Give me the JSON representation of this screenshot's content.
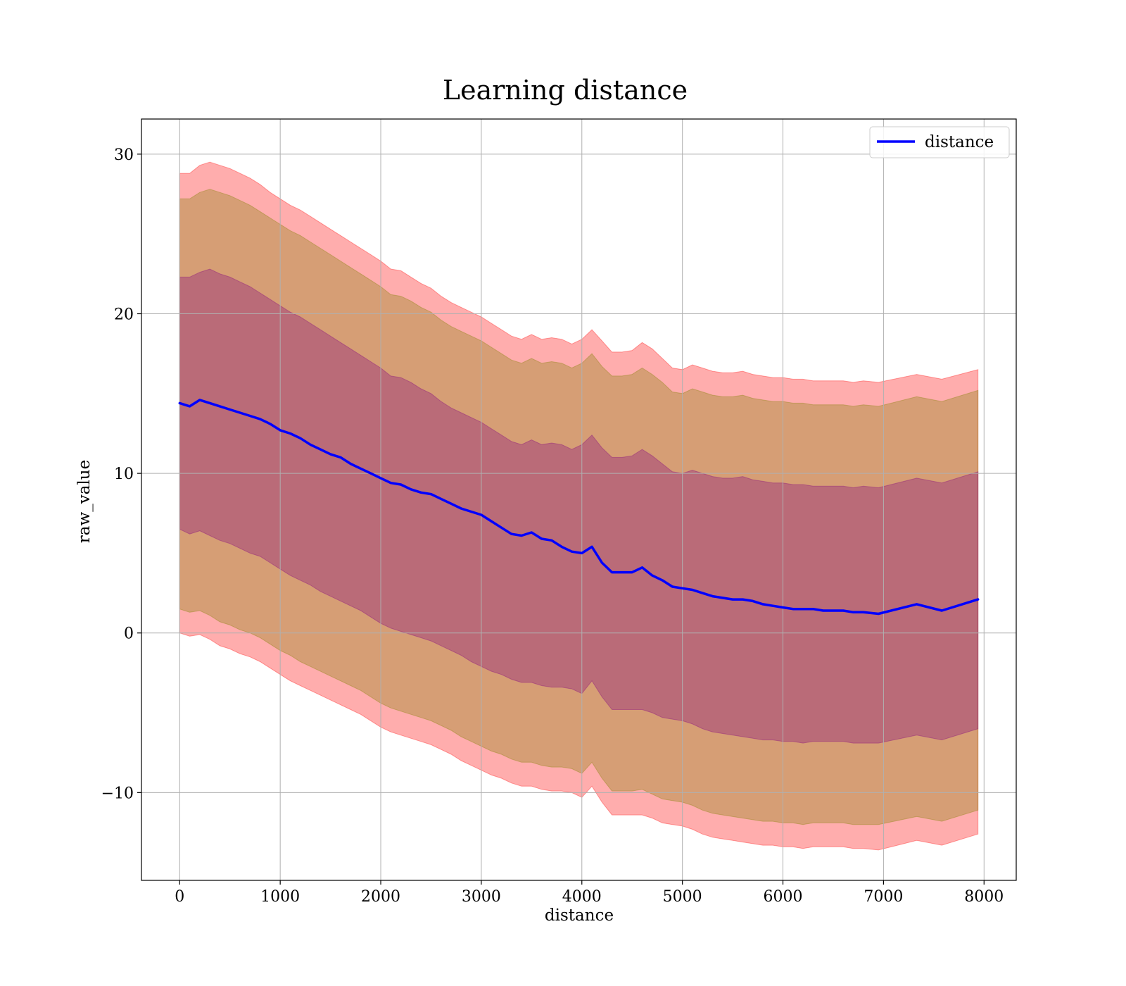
{
  "chart_data": {
    "type": "line",
    "title": "Learning distance",
    "xlabel": "distance",
    "ylabel": "raw_value",
    "xlim": [
      -380,
      8320
    ],
    "ylim": [
      -15.5,
      32.2
    ],
    "grid": true,
    "legend_placement": "top-right",
    "x_ticks": [
      0,
      1000,
      2000,
      3000,
      4000,
      5000,
      6000,
      7000,
      8000
    ],
    "x_tick_labels": [
      "0",
      "1000",
      "2000",
      "3000",
      "4000",
      "5000",
      "6000",
      "7000",
      "8000"
    ],
    "y_ticks": [
      -10,
      0,
      10,
      20,
      30
    ],
    "y_tick_labels": [
      "−10",
      "0",
      "10",
      "20",
      "30"
    ],
    "colors": {
      "line": "#0000ff",
      "outer_band": "#ff0000",
      "middle_band": "#808000",
      "inner_band": "#800080",
      "grid": "#b0b0b0"
    },
    "series": [
      {
        "name": "distance",
        "x": [
          0,
          100,
          200,
          300,
          400,
          500,
          600,
          700,
          800,
          900,
          1000,
          1100,
          1200,
          1300,
          1400,
          1500,
          1600,
          1700,
          1800,
          1900,
          2000,
          2100,
          2200,
          2300,
          2400,
          2500,
          2600,
          2700,
          2800,
          2900,
          3000,
          3100,
          3200,
          3300,
          3400,
          3500,
          3600,
          3700,
          3800,
          3900,
          4000,
          4100,
          4200,
          4300,
          4400,
          4500,
          4600,
          4700,
          4800,
          4900,
          5000,
          5100,
          5200,
          5300,
          5400,
          5500,
          5600,
          5700,
          5800,
          5900,
          6000,
          6100,
          6200,
          6300,
          6400,
          6500,
          6600,
          6700,
          6800,
          6950,
          7330,
          7580,
          7940
        ],
        "y": [
          14.4,
          14.2,
          14.6,
          14.4,
          14.2,
          14.0,
          13.8,
          13.6,
          13.4,
          13.1,
          12.7,
          12.5,
          12.2,
          11.8,
          11.5,
          11.2,
          11.0,
          10.6,
          10.3,
          10.0,
          9.7,
          9.4,
          9.3,
          9.0,
          8.8,
          8.7,
          8.4,
          8.1,
          7.8,
          7.6,
          7.4,
          7.0,
          6.6,
          6.2,
          6.1,
          6.3,
          5.9,
          5.8,
          5.4,
          5.1,
          5.0,
          5.4,
          4.4,
          3.8,
          3.8,
          3.8,
          4.1,
          3.6,
          3.3,
          2.9,
          2.8,
          2.7,
          2.5,
          2.3,
          2.2,
          2.1,
          2.1,
          2.0,
          1.8,
          1.7,
          1.6,
          1.5,
          1.5,
          1.5,
          1.4,
          1.4,
          1.4,
          1.3,
          1.3,
          1.2,
          1.8,
          1.4,
          2.1
        ]
      }
    ],
    "bands": [
      {
        "level": "outer",
        "x": [
          0,
          100,
          200,
          300,
          400,
          500,
          600,
          700,
          800,
          900,
          1000,
          1100,
          1200,
          1300,
          1400,
          1500,
          1600,
          1700,
          1800,
          1900,
          2000,
          2100,
          2200,
          2300,
          2400,
          2500,
          2600,
          2700,
          2800,
          2900,
          3000,
          3100,
          3200,
          3300,
          3400,
          3500,
          3600,
          3700,
          3800,
          3900,
          4000,
          4100,
          4200,
          4300,
          4400,
          4500,
          4600,
          4700,
          4800,
          4900,
          5000,
          5100,
          5200,
          5300,
          5400,
          5500,
          5600,
          5700,
          5800,
          5900,
          6000,
          6100,
          6200,
          6300,
          6400,
          6500,
          6600,
          6700,
          6800,
          6950,
          7330,
          7580,
          7940
        ],
        "upper": [
          28.8,
          28.8,
          29.3,
          29.5,
          29.3,
          29.1,
          28.8,
          28.5,
          28.1,
          27.6,
          27.2,
          26.8,
          26.5,
          26.1,
          25.7,
          25.3,
          24.9,
          24.5,
          24.1,
          23.7,
          23.3,
          22.8,
          22.7,
          22.3,
          21.9,
          21.6,
          21.1,
          20.7,
          20.4,
          20.1,
          19.8,
          19.4,
          19.0,
          18.6,
          18.4,
          18.7,
          18.4,
          18.5,
          18.4,
          18.1,
          18.4,
          19.0,
          18.3,
          17.6,
          17.6,
          17.7,
          18.2,
          17.8,
          17.2,
          16.6,
          16.5,
          16.8,
          16.6,
          16.4,
          16.3,
          16.3,
          16.4,
          16.2,
          16.1,
          16.0,
          16.0,
          15.9,
          15.9,
          15.8,
          15.8,
          15.8,
          15.8,
          15.7,
          15.8,
          15.7,
          16.2,
          15.9,
          16.5
        ],
        "lower": [
          0.0,
          -0.2,
          -0.1,
          -0.4,
          -0.8,
          -1.0,
          -1.3,
          -1.5,
          -1.8,
          -2.2,
          -2.6,
          -3.0,
          -3.3,
          -3.6,
          -3.9,
          -4.2,
          -4.5,
          -4.8,
          -5.1,
          -5.5,
          -5.9,
          -6.2,
          -6.4,
          -6.6,
          -6.8,
          -7.0,
          -7.3,
          -7.6,
          -8.0,
          -8.3,
          -8.6,
          -8.9,
          -9.1,
          -9.4,
          -9.6,
          -9.6,
          -9.8,
          -9.9,
          -9.9,
          -10.0,
          -10.3,
          -9.6,
          -10.6,
          -11.4,
          -11.4,
          -11.4,
          -11.4,
          -11.6,
          -11.9,
          -12.0,
          -12.1,
          -12.3,
          -12.6,
          -12.8,
          -12.9,
          -13.0,
          -13.1,
          -13.2,
          -13.3,
          -13.3,
          -13.4,
          -13.4,
          -13.5,
          -13.4,
          -13.4,
          -13.4,
          -13.4,
          -13.5,
          -13.5,
          -13.6,
          -13.0,
          -13.3,
          -12.6
        ]
      },
      {
        "level": "middle",
        "x": [
          0,
          100,
          200,
          300,
          400,
          500,
          600,
          700,
          800,
          900,
          1000,
          1100,
          1200,
          1300,
          1400,
          1500,
          1600,
          1700,
          1800,
          1900,
          2000,
          2100,
          2200,
          2300,
          2400,
          2500,
          2600,
          2700,
          2800,
          2900,
          3000,
          3100,
          3200,
          3300,
          3400,
          3500,
          3600,
          3700,
          3800,
          3900,
          4000,
          4100,
          4200,
          4300,
          4400,
          4500,
          4600,
          4700,
          4800,
          4900,
          5000,
          5100,
          5200,
          5300,
          5400,
          5500,
          5600,
          5700,
          5800,
          5900,
          6000,
          6100,
          6200,
          6300,
          6400,
          6500,
          6600,
          6700,
          6800,
          6950,
          7330,
          7580,
          7940
        ],
        "upper": [
          27.2,
          27.2,
          27.6,
          27.8,
          27.6,
          27.4,
          27.1,
          26.8,
          26.4,
          26.0,
          25.6,
          25.2,
          24.9,
          24.5,
          24.1,
          23.7,
          23.3,
          22.9,
          22.5,
          22.1,
          21.7,
          21.2,
          21.1,
          20.8,
          20.4,
          20.1,
          19.6,
          19.2,
          18.9,
          18.6,
          18.3,
          17.9,
          17.5,
          17.1,
          16.9,
          17.2,
          16.9,
          17.0,
          16.9,
          16.6,
          16.9,
          17.5,
          16.7,
          16.1,
          16.1,
          16.2,
          16.6,
          16.2,
          15.7,
          15.1,
          15.0,
          15.3,
          15.1,
          14.9,
          14.8,
          14.8,
          14.9,
          14.7,
          14.6,
          14.5,
          14.5,
          14.4,
          14.4,
          14.3,
          14.3,
          14.3,
          14.3,
          14.2,
          14.3,
          14.2,
          14.8,
          14.5,
          15.2
        ],
        "lower": [
          1.5,
          1.3,
          1.4,
          1.1,
          0.7,
          0.5,
          0.2,
          -0.0,
          -0.3,
          -0.7,
          -1.1,
          -1.4,
          -1.8,
          -2.1,
          -2.4,
          -2.7,
          -3.0,
          -3.3,
          -3.6,
          -4.0,
          -4.4,
          -4.7,
          -4.9,
          -5.1,
          -5.3,
          -5.5,
          -5.8,
          -6.1,
          -6.5,
          -6.8,
          -7.1,
          -7.4,
          -7.6,
          -7.9,
          -8.1,
          -8.1,
          -8.3,
          -8.4,
          -8.4,
          -8.5,
          -8.8,
          -8.1,
          -9.1,
          -9.9,
          -9.9,
          -9.9,
          -9.8,
          -10.1,
          -10.4,
          -10.5,
          -10.6,
          -10.8,
          -11.1,
          -11.3,
          -11.4,
          -11.5,
          -11.6,
          -11.7,
          -11.8,
          -11.8,
          -11.9,
          -11.9,
          -12.0,
          -11.9,
          -11.9,
          -11.9,
          -11.9,
          -12.0,
          -12.0,
          -12.0,
          -11.5,
          -11.8,
          -11.1
        ]
      },
      {
        "level": "inner",
        "x": [
          0,
          100,
          200,
          300,
          400,
          500,
          600,
          700,
          800,
          900,
          1000,
          1100,
          1200,
          1300,
          1400,
          1500,
          1600,
          1700,
          1800,
          1900,
          2000,
          2100,
          2200,
          2300,
          2400,
          2500,
          2600,
          2700,
          2800,
          2900,
          3000,
          3100,
          3200,
          3300,
          3400,
          3500,
          3600,
          3700,
          3800,
          3900,
          4000,
          4100,
          4200,
          4300,
          4400,
          4500,
          4600,
          4700,
          4800,
          4900,
          5000,
          5100,
          5200,
          5300,
          5400,
          5500,
          5600,
          5700,
          5800,
          5900,
          6000,
          6100,
          6200,
          6300,
          6400,
          6500,
          6600,
          6700,
          6800,
          6950,
          7330,
          7580,
          7940
        ],
        "upper": [
          22.3,
          22.3,
          22.6,
          22.8,
          22.5,
          22.3,
          22.0,
          21.7,
          21.3,
          20.9,
          20.5,
          20.1,
          19.8,
          19.4,
          19.0,
          18.6,
          18.2,
          17.8,
          17.4,
          17.0,
          16.6,
          16.1,
          16.0,
          15.7,
          15.3,
          15.0,
          14.5,
          14.1,
          13.8,
          13.5,
          13.2,
          12.8,
          12.4,
          12.0,
          11.8,
          12.1,
          11.8,
          11.9,
          11.8,
          11.5,
          11.8,
          12.4,
          11.6,
          11.0,
          11.0,
          11.1,
          11.5,
          11.1,
          10.6,
          10.1,
          10.0,
          10.2,
          10.0,
          9.8,
          9.7,
          9.7,
          9.8,
          9.6,
          9.5,
          9.4,
          9.4,
          9.3,
          9.3,
          9.2,
          9.2,
          9.2,
          9.2,
          9.1,
          9.2,
          9.1,
          9.7,
          9.4,
          10.1
        ],
        "lower": [
          6.5,
          6.2,
          6.4,
          6.1,
          5.8,
          5.6,
          5.3,
          5.0,
          4.8,
          4.4,
          4.0,
          3.6,
          3.3,
          3.0,
          2.6,
          2.3,
          2.0,
          1.7,
          1.4,
          1.0,
          0.6,
          0.3,
          0.1,
          -0.1,
          -0.3,
          -0.5,
          -0.8,
          -1.1,
          -1.4,
          -1.8,
          -2.1,
          -2.4,
          -2.6,
          -2.9,
          -3.1,
          -3.1,
          -3.3,
          -3.4,
          -3.4,
          -3.5,
          -3.8,
          -3.0,
          -4.0,
          -4.8,
          -4.8,
          -4.8,
          -4.8,
          -5.0,
          -5.3,
          -5.4,
          -5.5,
          -5.7,
          -6.0,
          -6.2,
          -6.3,
          -6.4,
          -6.5,
          -6.6,
          -6.7,
          -6.7,
          -6.8,
          -6.8,
          -6.9,
          -6.8,
          -6.8,
          -6.8,
          -6.8,
          -6.9,
          -6.9,
          -6.9,
          -6.4,
          -6.7,
          -6.0
        ]
      }
    ]
  }
}
